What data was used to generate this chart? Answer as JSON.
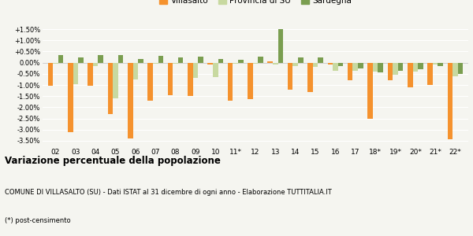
{
  "years": [
    "02",
    "03",
    "04",
    "05",
    "06",
    "07",
    "08",
    "09",
    "10",
    "11*",
    "12",
    "13",
    "14",
    "15",
    "16",
    "17",
    "18*",
    "19*",
    "20*",
    "21*",
    "22*"
  ],
  "villasalto": [
    -1.05,
    -3.1,
    -1.05,
    -2.3,
    -3.4,
    -1.7,
    -1.45,
    -1.5,
    -0.1,
    -1.7,
    -1.65,
    0.05,
    -1.2,
    -1.3,
    -0.1,
    -0.8,
    -2.5,
    -0.8,
    -1.1,
    -1.0,
    -3.45
  ],
  "provincia_su": [
    -0.05,
    -0.95,
    -0.15,
    -1.6,
    -0.75,
    -0.05,
    -0.05,
    -0.7,
    -0.65,
    -0.05,
    -0.05,
    -0.1,
    -0.15,
    -0.2,
    -0.35,
    -0.35,
    -0.4,
    -0.55,
    -0.4,
    -0.1,
    -0.6
  ],
  "sardegna": [
    0.35,
    0.25,
    0.35,
    0.35,
    0.18,
    0.3,
    0.25,
    0.28,
    0.15,
    0.14,
    0.27,
    1.5,
    0.25,
    0.22,
    -0.15,
    -0.25,
    -0.45,
    -0.35,
    -0.3,
    -0.15,
    -0.5
  ],
  "color_villasalto": "#f5922e",
  "color_provincia": "#c8d9a0",
  "color_sardegna": "#7a9e50",
  "title": "Variazione percentuale della popolazione",
  "subtitle": "COMUNE DI VILLASALTO (SU) - Dati ISTAT al 31 dicembre di ogni anno - Elaborazione TUTTITALIA.IT",
  "footnote": "(*) post-censimento",
  "ylim_min": -3.75,
  "ylim_max": 1.75,
  "yticks": [
    -3.5,
    -3.0,
    -2.5,
    -2.0,
    -1.5,
    -1.0,
    -0.5,
    0.0,
    0.5,
    1.0,
    1.5
  ],
  "bg_color": "#f5f5f0",
  "bar_width": 0.26,
  "title_fontsize": 8.5,
  "subtitle_fontsize": 6.0,
  "footnote_fontsize": 6.0,
  "ytick_fontsize": 6.0,
  "xtick_fontsize": 6.5,
  "legend_fontsize": 7.5
}
